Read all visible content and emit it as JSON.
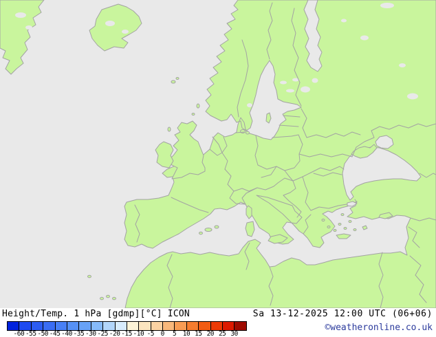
{
  "legend": {
    "title": "Height/Temp. 1 hPa [gdmp][°C] ICON",
    "ticks": [
      "-60",
      "-55",
      "-50",
      "-45",
      "-40",
      "-35",
      "-30",
      "-25",
      "-20",
      "-15",
      "-10",
      "-5",
      "0",
      "5",
      "10",
      "15",
      "20",
      "25",
      "30"
    ],
    "colors": [
      "#0022dd",
      "#1e4af0",
      "#2c5cf1",
      "#3a6df3",
      "#4880f5",
      "#5691f6",
      "#68a2f7",
      "#86baf9",
      "#b2d6fb",
      "#d8ecfd",
      "#fdf3d7",
      "#fce5bf",
      "#fbd2a3",
      "#f9b87b",
      "#f89c54",
      "#f67d30",
      "#f25c13",
      "#ed3a05",
      "#dd1a00",
      "#9e0b00"
    ]
  },
  "footer": {
    "datetime": "Sa 13-12-2025 12:00 UTC (06+06)",
    "copyright": "©weatheronline.co.uk",
    "copyright_color": "#2b3a9c"
  },
  "map": {
    "land_color": "#c9f59d",
    "sea_color": "#e9e9e9",
    "border_color": "#a3a3a3"
  }
}
